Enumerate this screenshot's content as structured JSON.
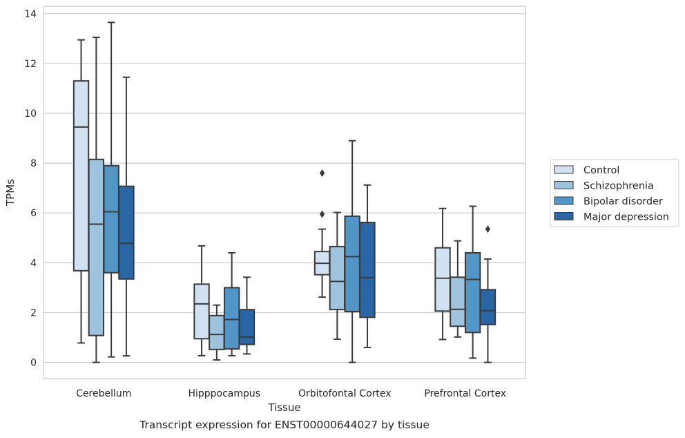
{
  "chart_data": {
    "type": "box",
    "title": "",
    "caption": "Transcript expression for ENST00000644027 by tissue",
    "xlabel": "Tissue",
    "ylabel": "TPMs",
    "ylim": [
      -0.65,
      14.3
    ],
    "yticks": [
      0,
      2,
      4,
      6,
      8,
      10,
      12,
      14
    ],
    "grid": true,
    "legend_position": "right",
    "categories": [
      "Cerebellum",
      "Hipppocampus",
      "Orbitofontal Cortex",
      "Prefrontal Cortex"
    ],
    "series": [
      {
        "name": "Control",
        "color": "#d0e1f2",
        "boxes": [
          {
            "whislo": 0.78,
            "q1": 3.68,
            "med": 9.45,
            "q3": 11.3,
            "whishi": 12.95,
            "fliers": []
          },
          {
            "whislo": 0.27,
            "q1": 0.95,
            "med": 2.35,
            "q3": 3.14,
            "whishi": 4.68,
            "fliers": []
          },
          {
            "whislo": 2.62,
            "q1": 3.52,
            "med": 3.98,
            "q3": 4.45,
            "whishi": 5.35,
            "fliers": [
              5.95,
              7.6
            ]
          },
          {
            "whislo": 0.92,
            "q1": 2.06,
            "med": 3.38,
            "q3": 4.6,
            "whishi": 6.18,
            "fliers": []
          }
        ]
      },
      {
        "name": "Schizophrenia",
        "color": "#9dc3de",
        "boxes": [
          {
            "whislo": 0.0,
            "q1": 1.08,
            "med": 5.55,
            "q3": 8.15,
            "whishi": 13.05,
            "fliers": []
          },
          {
            "whislo": 0.1,
            "q1": 0.52,
            "med": 1.12,
            "q3": 1.88,
            "whishi": 2.3,
            "fliers": []
          },
          {
            "whislo": 0.93,
            "q1": 2.12,
            "med": 3.25,
            "q3": 4.65,
            "whishi": 6.02,
            "fliers": []
          },
          {
            "whislo": 1.02,
            "q1": 1.45,
            "med": 2.13,
            "q3": 3.42,
            "whishi": 4.88,
            "fliers": []
          }
        ]
      },
      {
        "name": "Bipolar disorder",
        "color": "#5295c7",
        "boxes": [
          {
            "whislo": 0.22,
            "q1": 3.6,
            "med": 6.05,
            "q3": 7.9,
            "whishi": 13.65,
            "fliers": []
          },
          {
            "whislo": 0.27,
            "q1": 0.54,
            "med": 1.72,
            "q3": 3.0,
            "whishi": 4.4,
            "fliers": []
          },
          {
            "whislo": 0.0,
            "q1": 2.04,
            "med": 4.25,
            "q3": 5.87,
            "whishi": 8.9,
            "fliers": []
          },
          {
            "whislo": 0.17,
            "q1": 1.2,
            "med": 3.33,
            "q3": 4.4,
            "whishi": 6.27,
            "fliers": []
          }
        ]
      },
      {
        "name": "Major depression",
        "color": "#2966a6",
        "boxes": [
          {
            "whislo": 0.26,
            "q1": 3.35,
            "med": 4.78,
            "q3": 7.07,
            "whishi": 11.45,
            "fliers": []
          },
          {
            "whislo": 0.34,
            "q1": 0.72,
            "med": 1.02,
            "q3": 2.12,
            "whishi": 3.42,
            "fliers": []
          },
          {
            "whislo": 0.6,
            "q1": 1.81,
            "med": 3.4,
            "q3": 5.62,
            "whishi": 7.12,
            "fliers": []
          },
          {
            "whislo": 0.0,
            "q1": 1.52,
            "med": 2.08,
            "q3": 2.92,
            "whishi": 4.15,
            "fliers": [
              5.35
            ]
          }
        ]
      }
    ]
  }
}
